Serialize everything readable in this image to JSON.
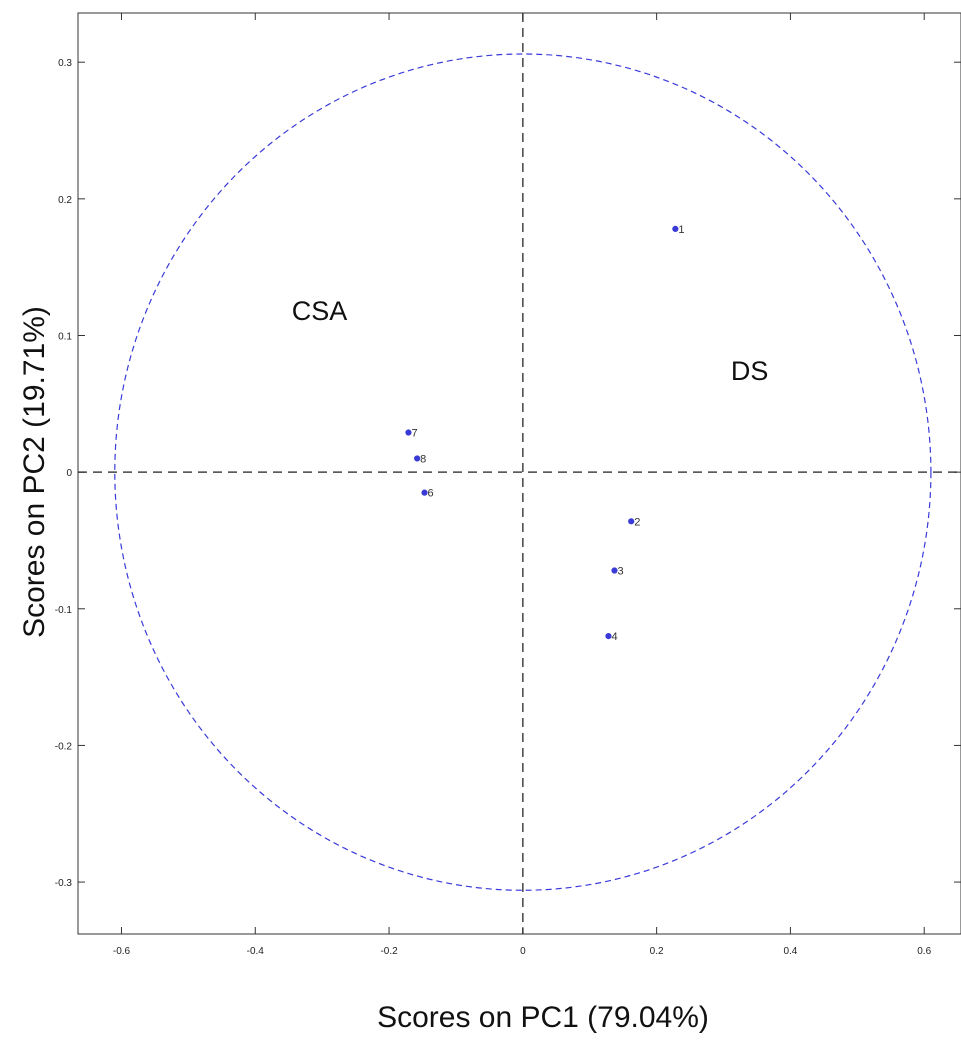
{
  "colors": {
    "points": "#3a3ad6",
    "ellipse": "#3b3bd9",
    "zero_lines": "#444444",
    "axes": "#333333"
  },
  "chart_data": {
    "type": "scatter",
    "xlabel": "Scores on PC1 (79.04%)",
    "ylabel": "Scores on PC2 (19.71%)",
    "xlim": [
      -0.665,
      0.655
    ],
    "ylim": [
      -0.338,
      0.336
    ],
    "xticks": [
      -0.6,
      -0.4,
      -0.2,
      0,
      0.2,
      0.4,
      0.6
    ],
    "xtick_labels": [
      "-0.6",
      "-0.4",
      "-0.2",
      "0",
      "0.2",
      "0.4",
      "0.6"
    ],
    "yticks": [
      -0.3,
      -0.2,
      -0.1,
      0,
      0.1,
      0.2,
      0.3
    ],
    "ytick_labels": [
      "-0.3",
      "-0.2",
      "-0.1",
      "0",
      "0.1",
      "0.2",
      "0.3"
    ],
    "grid": false,
    "zero_lines": true,
    "confidence_ellipse": {
      "rx": 0.61,
      "ry": 0.306
    },
    "points": [
      {
        "label": "1",
        "x": 0.228,
        "y": 0.178
      },
      {
        "label": "2",
        "x": 0.162,
        "y": -0.036
      },
      {
        "label": "3",
        "x": 0.137,
        "y": -0.072
      },
      {
        "label": "4",
        "x": 0.128,
        "y": -0.12
      },
      {
        "label": "6",
        "x": -0.147,
        "y": -0.015
      },
      {
        "label": "7",
        "x": -0.171,
        "y": 0.029
      },
      {
        "label": "8",
        "x": -0.158,
        "y": 0.01
      }
    ],
    "annotations": [
      {
        "text": "CSA",
        "x": -0.304,
        "y": 0.118
      },
      {
        "text": "DS",
        "x": 0.339,
        "y": 0.074
      }
    ]
  }
}
